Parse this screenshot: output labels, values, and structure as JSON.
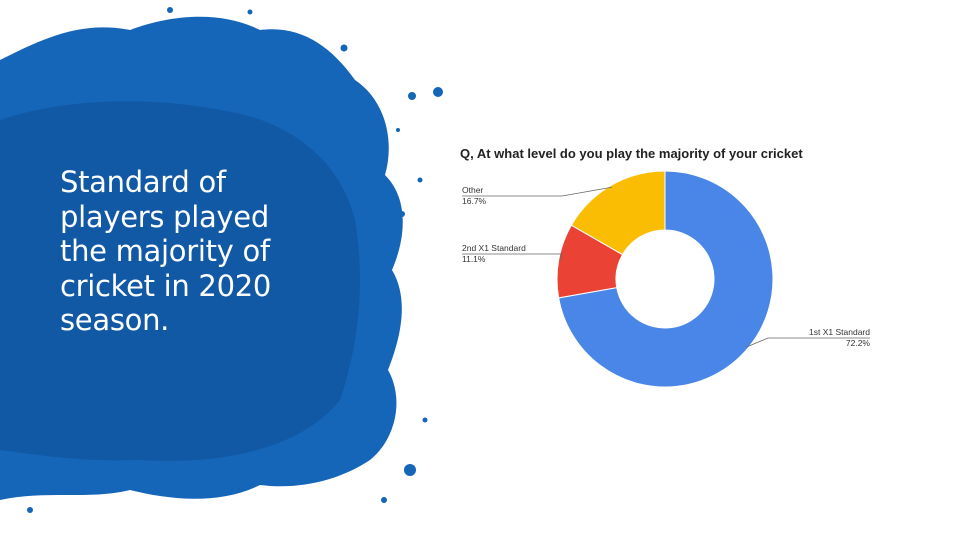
{
  "slide": {
    "title": "Standard of players played the majority of cricket in 2020 season."
  },
  "colors": {
    "splash_blue": "#1565b8",
    "splash_dark": "#0e4f96",
    "first_xi": "#4a86e8",
    "second_xi": "#ea4335",
    "other": "#fbbc04"
  },
  "chart_data": {
    "type": "pie",
    "title": "Q, At what level do you play the majority of your cricket",
    "donut": true,
    "slices": [
      {
        "label": "1st X1 Standard",
        "value": 72.2,
        "display": "72.2%",
        "color": "#4a86e8"
      },
      {
        "label": "2nd X1 Standard",
        "value": 11.1,
        "display": "11.1%",
        "color": "#ea4335"
      },
      {
        "label": "Other",
        "value": 16.7,
        "display": "16.7%",
        "color": "#fbbc04"
      }
    ]
  }
}
